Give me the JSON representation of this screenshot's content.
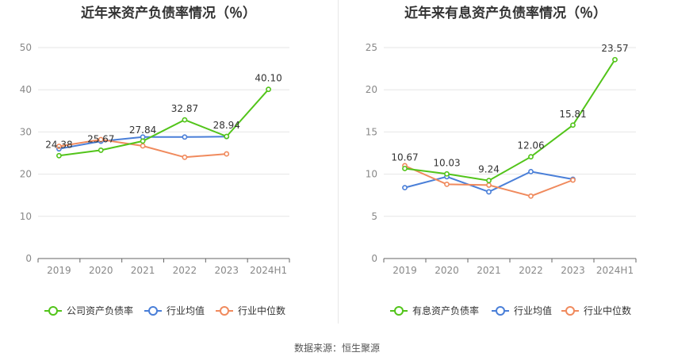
{
  "footer": {
    "source": "数据来源：恒生聚源"
  },
  "chart_data": [
    {
      "type": "line",
      "title": "近年来资产负债率情况（％）",
      "categories": [
        "2019",
        "2020",
        "2021",
        "2022",
        "2023",
        "2024H1"
      ],
      "ylim": [
        0,
        50
      ],
      "yticks": [
        0,
        10,
        20,
        30,
        40,
        50
      ],
      "grid": true,
      "legend_position": "bottom",
      "series": [
        {
          "name": "公司资产负债率",
          "color": "#52c41a",
          "labeled": true,
          "values": [
            24.38,
            25.67,
            27.84,
            32.87,
            28.94,
            40.1
          ],
          "labels": [
            "24.38",
            "25.67",
            "27.84",
            "32.87",
            "28.94",
            "40.10"
          ]
        },
        {
          "name": "行业均值",
          "color": "#4a7fd8",
          "labeled": false,
          "values": [
            26.0,
            27.8,
            28.8,
            28.8,
            28.9,
            null
          ]
        },
        {
          "name": "行业中位数",
          "color": "#f08a5d",
          "labeled": false,
          "values": [
            26.6,
            28.2,
            26.7,
            24.0,
            24.8,
            null
          ]
        }
      ]
    },
    {
      "type": "line",
      "title": "近年来有息资产负债率情况（％）",
      "categories": [
        "2019",
        "2020",
        "2021",
        "2022",
        "2023",
        "2024H1"
      ],
      "ylim": [
        0,
        25
      ],
      "yticks": [
        0,
        5,
        10,
        15,
        20,
        25
      ],
      "grid": true,
      "legend_position": "bottom",
      "series": [
        {
          "name": "有息资产负债率",
          "color": "#52c41a",
          "labeled": true,
          "values": [
            10.67,
            10.03,
            9.24,
            12.06,
            15.81,
            23.57
          ],
          "labels": [
            "10.67",
            "10.03",
            "9.24",
            "12.06",
            "15.81",
            "23.57"
          ]
        },
        {
          "name": "行业均值",
          "color": "#4a7fd8",
          "labeled": false,
          "values": [
            8.4,
            9.7,
            7.9,
            10.3,
            9.4,
            null
          ]
        },
        {
          "name": "行业中位数",
          "color": "#f08a5d",
          "labeled": false,
          "values": [
            11.0,
            8.8,
            8.7,
            7.4,
            9.3,
            null
          ]
        }
      ]
    }
  ]
}
